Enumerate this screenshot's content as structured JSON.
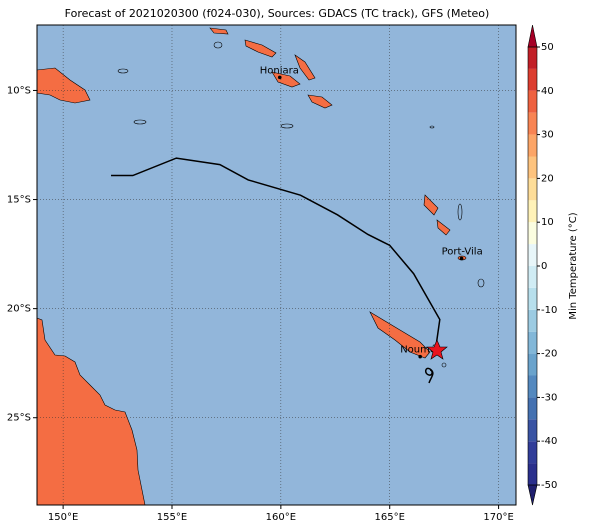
{
  "chart_data": {
    "type": "map",
    "title": "Forecast of 2021020300 (f024-030), Sources: GDACS (TC track), GFS (Meteo)",
    "xlim": [
      148.8,
      170.8
    ],
    "ylim": [
      -29,
      -7
    ],
    "xticks": [
      {
        "value": 150,
        "label": "150°E"
      },
      {
        "value": 155,
        "label": "155°E"
      },
      {
        "value": 160,
        "label": "160°E"
      },
      {
        "value": 165,
        "label": "165°E"
      },
      {
        "value": 170,
        "label": "170°E"
      }
    ],
    "yticks": [
      {
        "value": -10,
        "label": "10°S"
      },
      {
        "value": -15,
        "label": "15°S"
      },
      {
        "value": -20,
        "label": "20°S"
      },
      {
        "value": -25,
        "label": "25°S"
      }
    ],
    "grid": true,
    "ocean_color": "#92b6da",
    "land_color": "#f46d43",
    "track": {
      "color": "#000000",
      "x": [
        152.2,
        153.2,
        155.2,
        157.2,
        158.5,
        160.9,
        162.6,
        164.0,
        165.0,
        166.1,
        167.3,
        167.1
      ],
      "y": [
        -13.9,
        -13.9,
        -13.1,
        -13.4,
        -14.1,
        -14.8,
        -15.7,
        -16.6,
        -17.1,
        -18.4,
        -20.5,
        -21.9
      ]
    },
    "cities": [
      {
        "name": "Honiara",
        "lon": 159.95,
        "lat": -9.4
      },
      {
        "name": "Port-Vila",
        "lon": 168.3,
        "lat": -17.7
      },
      {
        "name": "Nouméa",
        "lon": 166.4,
        "lat": -22.2
      }
    ],
    "colorbar": {
      "label": "Min Temperature (°C)",
      "lim": [
        -50,
        50
      ],
      "ticks": [
        -50,
        -40,
        -30,
        -20,
        -10,
        0,
        10,
        20,
        30,
        40,
        50
      ],
      "levels": [
        -50,
        -45,
        -40,
        -35,
        -30,
        -25,
        -20,
        -15,
        -10,
        -5,
        0,
        5,
        10,
        15,
        20,
        25,
        30,
        35,
        40,
        45,
        50
      ],
      "colors": [
        "#2a2f8c",
        "#313d99",
        "#3953a3",
        "#4471b1",
        "#5489bf",
        "#6aa3cc",
        "#82b7d8",
        "#9ccbe2",
        "#b7dfec",
        "#d0ecf4",
        "#e8f6f9",
        "#fbfde0",
        "#fff2b8",
        "#fedd98",
        "#fdc37e",
        "#fca567",
        "#f88453",
        "#ee6140",
        "#dc3d2f",
        "#c21f27"
      ],
      "under_color": "#1f1f6e",
      "over_color": "#a50026"
    }
  }
}
